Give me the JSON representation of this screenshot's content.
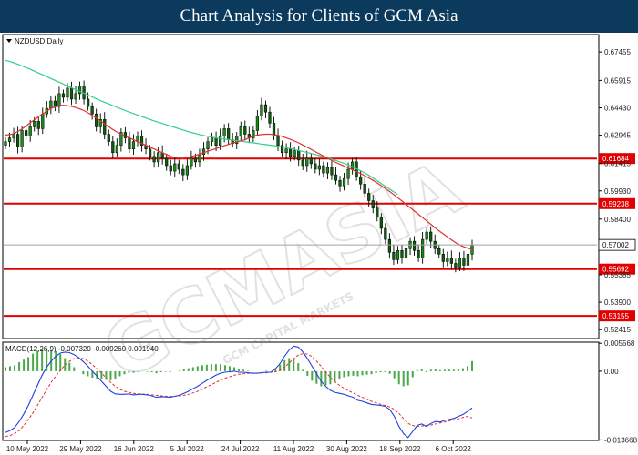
{
  "header": {
    "title": "Chart Analysis for Clients of GCM Asia"
  },
  "watermark": {
    "brand": "GCMASIA",
    "sub": "GCM CAPITAL MARKETS"
  },
  "colors": {
    "banner": "#0b3a5c",
    "bull": "#1a8a1a",
    "bear": "#1a8a1a",
    "ma_fast": "#e03030",
    "ma_slow": "#30d08a",
    "level": "#e00000",
    "macd_line": "#2040e0",
    "signal_line": "#e03030",
    "hist": "#4aa84a"
  },
  "chart_data": [
    {
      "type": "candlestick",
      "symbol_label": "NZDUSD,Daily",
      "ylim": [
        0.5198,
        0.6835
      ],
      "y_ticks": [
        "0.67455",
        "0.65915",
        "0.64430",
        "0.62945",
        "0.61415",
        "0.59930",
        "0.58400",
        "0.56915",
        "0.55385",
        "0.53900",
        "0.52415"
      ],
      "x_ticks": [
        "10 May 2022",
        "29 May 2022",
        "16 Jun 2022",
        "5 Jul 2022",
        "24 Jul 2022",
        "11 Aug 2022",
        "30 Aug 2022",
        "18 Sep 2022",
        "6 Oct 2022"
      ],
      "current_price": "0.57002",
      "levels": [
        {
          "label": "0.61684",
          "value": 0.61684
        },
        {
          "label": "0.59238",
          "value": 0.59238
        },
        {
          "label": "0.55692",
          "value": 0.55692
        },
        {
          "label": "0.53155",
          "value": 0.53155
        }
      ],
      "close_series": [
        0.626,
        0.628,
        0.63,
        0.623,
        0.632,
        0.629,
        0.634,
        0.637,
        0.633,
        0.641,
        0.644,
        0.648,
        0.645,
        0.652,
        0.65,
        0.655,
        0.649,
        0.652,
        0.656,
        0.649,
        0.645,
        0.641,
        0.634,
        0.638,
        0.63,
        0.626,
        0.62,
        0.624,
        0.631,
        0.628,
        0.622,
        0.626,
        0.629,
        0.624,
        0.622,
        0.618,
        0.615,
        0.62,
        0.617,
        0.613,
        0.61,
        0.614,
        0.611,
        0.608,
        0.613,
        0.617,
        0.615,
        0.619,
        0.622,
        0.626,
        0.628,
        0.624,
        0.629,
        0.633,
        0.627,
        0.625,
        0.629,
        0.634,
        0.63,
        0.628,
        0.632,
        0.64,
        0.646,
        0.642,
        0.636,
        0.629,
        0.624,
        0.62,
        0.622,
        0.618,
        0.621,
        0.616,
        0.613,
        0.617,
        0.614,
        0.611,
        0.613,
        0.609,
        0.612,
        0.608,
        0.605,
        0.602,
        0.606,
        0.611,
        0.615,
        0.607,
        0.603,
        0.598,
        0.594,
        0.59,
        0.585,
        0.579,
        0.573,
        0.566,
        0.562,
        0.567,
        0.563,
        0.568,
        0.572,
        0.567,
        0.563,
        0.573,
        0.577,
        0.572,
        0.568,
        0.565,
        0.561,
        0.563,
        0.56,
        0.558,
        0.563,
        0.559,
        0.565,
        0.57
      ],
      "ma_fast": [
        0.6295,
        0.6298,
        0.6303,
        0.6315,
        0.6328,
        0.6345,
        0.6362,
        0.6378,
        0.6394,
        0.641,
        0.6425,
        0.644,
        0.6448,
        0.6455,
        0.6457,
        0.6455,
        0.645,
        0.6445,
        0.6437,
        0.6428,
        0.6416,
        0.6403,
        0.6388,
        0.6372,
        0.6356,
        0.634,
        0.6325,
        0.6312,
        0.63,
        0.629,
        0.628,
        0.627,
        0.626,
        0.625,
        0.624,
        0.623,
        0.622,
        0.621,
        0.62,
        0.619,
        0.618,
        0.6175,
        0.6172,
        0.617,
        0.6175,
        0.618,
        0.6185,
        0.6192,
        0.62,
        0.6208,
        0.6215,
        0.6222,
        0.623,
        0.6238,
        0.6245,
        0.6252,
        0.6258,
        0.6264,
        0.627,
        0.628,
        0.629,
        0.6295,
        0.6298,
        0.63,
        0.63,
        0.6298,
        0.6294,
        0.6288,
        0.628,
        0.6272,
        0.6263,
        0.6253,
        0.6242,
        0.623,
        0.6218,
        0.6206,
        0.6194,
        0.6182,
        0.617,
        0.6158,
        0.6147,
        0.6137,
        0.6127,
        0.6117,
        0.6107,
        0.6097,
        0.6087,
        0.6075,
        0.6063,
        0.605,
        0.6036,
        0.6021,
        0.6006,
        0.599,
        0.5973,
        0.5956,
        0.5938,
        0.592,
        0.5902,
        0.5884,
        0.5866,
        0.5848,
        0.583,
        0.5812,
        0.5794,
        0.5776,
        0.576,
        0.5744,
        0.5728,
        0.5712,
        0.57,
        0.569,
        0.5682,
        0.5676
      ],
      "ma_slow": [
        0.67,
        0.6695,
        0.6687,
        0.6679,
        0.667,
        0.6661,
        0.6652,
        0.6642,
        0.6632,
        0.6622,
        0.6612,
        0.6602,
        0.6592,
        0.6582,
        0.6572,
        0.6562,
        0.6552,
        0.6542,
        0.6532,
        0.6522,
        0.6512,
        0.6502,
        0.6492,
        0.6482,
        0.6473,
        0.6464,
        0.6455,
        0.6446,
        0.6437,
        0.6428,
        0.642,
        0.6412,
        0.6404,
        0.6396,
        0.6388,
        0.638,
        0.6372,
        0.6365,
        0.6358,
        0.6351,
        0.6344,
        0.6337,
        0.633,
        0.6323,
        0.6316,
        0.631,
        0.6304,
        0.6298,
        0.6293,
        0.6288,
        0.6284,
        0.628,
        0.6277,
        0.6274,
        0.6271,
        0.6268,
        0.6265,
        0.6262,
        0.6259,
        0.6256,
        0.6253,
        0.625,
        0.6247,
        0.6244,
        0.6241,
        0.6238,
        0.6235,
        0.6231,
        0.6227,
        0.6222,
        0.6217,
        0.6212,
        0.6207,
        0.6202,
        0.6196,
        0.619,
        0.6184,
        0.6178,
        0.6172,
        0.6165,
        0.6158,
        0.615,
        0.6142,
        0.6133,
        0.6124,
        0.6113,
        0.6102,
        0.609,
        0.6077,
        0.6063,
        0.6048,
        0.6033,
        0.6018,
        0.6003,
        0.5988,
        0.5973
      ]
    },
    {
      "type": "macd",
      "label": "MACD(12,26,9) -0.007320 -0.009260 0.001940",
      "ylim": [
        -0.0136,
        0.0056
      ],
      "y_ticks": [
        "0.005568",
        "0.00",
        "-0.013668"
      ],
      "macd_series": [
        -0.0122,
        -0.0118,
        -0.0112,
        -0.01,
        -0.0085,
        -0.0068,
        -0.0048,
        -0.0028,
        -0.0008,
        0.0008,
        0.002,
        0.003,
        0.0036,
        0.0038,
        0.0037,
        0.0033,
        0.0027,
        0.0019,
        0.001,
        0.0,
        -0.001,
        -0.002,
        -0.003,
        -0.004,
        -0.0045,
        -0.0046,
        -0.0046,
        -0.0045,
        -0.0047,
        -0.0046,
        -0.0046,
        -0.0047,
        -0.0049,
        -0.0052,
        -0.0051,
        -0.0051,
        -0.0052,
        -0.005,
        -0.0048,
        -0.0044,
        -0.004,
        -0.0035,
        -0.003,
        -0.0024,
        -0.0018,
        -0.0013,
        -0.0008,
        -0.0004,
        -0.0002,
        -0.0001,
        0.0,
        -0.0002,
        -0.0002,
        -0.0003,
        -0.0004,
        -0.0004,
        -0.0003,
        -0.0002,
        -0.0002,
        0.0005,
        0.0015,
        0.003,
        0.0042,
        0.005,
        0.0048,
        0.0038,
        0.0025,
        0.001,
        -0.0005,
        -0.002,
        -0.003,
        -0.0038,
        -0.0042,
        -0.0044,
        -0.0046,
        -0.0049,
        -0.0052,
        -0.0058,
        -0.006,
        -0.0063,
        -0.0066,
        -0.0067,
        -0.0068,
        -0.007,
        -0.0076,
        -0.009,
        -0.011,
        -0.0124,
        -0.0132,
        -0.012,
        -0.0108,
        -0.0105,
        -0.011,
        -0.0104,
        -0.01,
        -0.0101,
        -0.0098,
        -0.0096,
        -0.0094,
        -0.009,
        -0.0086,
        -0.008,
        -0.0073
      ],
      "signal_series": [
        -0.013,
        -0.0128,
        -0.0124,
        -0.0118,
        -0.0108,
        -0.0096,
        -0.0083,
        -0.0068,
        -0.0052,
        -0.0037,
        -0.0022,
        -0.001,
        0.0002,
        0.0012,
        0.002,
        0.0025,
        0.0027,
        0.0025,
        0.002,
        0.0013,
        0.0005,
        -0.0004,
        -0.0013,
        -0.0022,
        -0.003,
        -0.0036,
        -0.004,
        -0.0042,
        -0.0044,
        -0.0045,
        -0.0046,
        -0.0046,
        -0.0047,
        -0.0048,
        -0.0049,
        -0.005,
        -0.005,
        -0.005,
        -0.0049,
        -0.0048,
        -0.0046,
        -0.0043,
        -0.004,
        -0.0036,
        -0.0031,
        -0.0027,
        -0.0022,
        -0.0018,
        -0.0014,
        -0.0011,
        -0.0008,
        -0.0006,
        -0.0005,
        -0.0004,
        -0.0004,
        -0.0004,
        -0.0003,
        -0.0003,
        -0.0002,
        -0.0001,
        0.0002,
        0.0008,
        0.0016,
        0.0025,
        0.0032,
        0.0035,
        0.0034,
        0.0029,
        0.002,
        0.001,
        -0.0002,
        -0.0012,
        -0.0021,
        -0.0028,
        -0.0034,
        -0.0039,
        -0.0043,
        -0.0048,
        -0.0052,
        -0.0056,
        -0.006,
        -0.0063,
        -0.0066,
        -0.0068,
        -0.0071,
        -0.0076,
        -0.0084,
        -0.0094,
        -0.0104,
        -0.0108,
        -0.011,
        -0.0109,
        -0.0108,
        -0.0107,
        -0.0105,
        -0.0103,
        -0.0101,
        -0.0099,
        -0.0097,
        -0.0095,
        -0.0092,
        -0.009,
        -0.0093
      ]
    }
  ]
}
